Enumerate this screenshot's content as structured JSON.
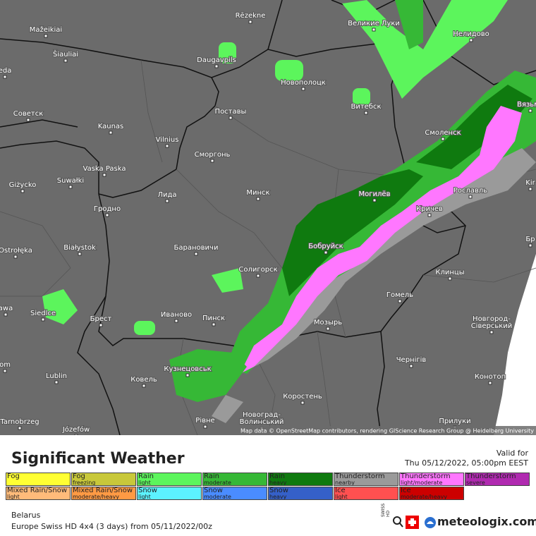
{
  "map": {
    "cities": [
      "Rēzekne",
      "Великие Луки",
      "Mažeikiai",
      "Нелидово",
      "Šiauliai",
      "Daugavpils",
      "Новополоцк",
      "Витебск",
      "Вязьма",
      "Советск",
      "Kaunas",
      "Поставы",
      "Смоленск",
      "Vilnius",
      "Сморгонь",
      "Vaska Paska",
      "Giżycko",
      "Suwałki",
      "Лида",
      "Минск",
      "Могилёв",
      "Рославль",
      "Kir",
      "Гродно",
      "Кричев",
      "Ostrołęka",
      "Białystok",
      "Бобруйск",
      "Барановичи",
      "Бр",
      "Солигорск",
      "Клинцы",
      "Гомель",
      "awa",
      "Siedlce",
      "Брест",
      "Иваново",
      "Пинск",
      "Мозырь",
      "Новгород-",
      "Сіверський",
      "om",
      "Чернігів",
      "Кузнецовськ",
      "Ковель",
      "Lublin",
      "Конотоп",
      "Коростень",
      "Новоград-",
      "Волинський",
      "Рівне",
      "Прилуки",
      "Tarnobrzeg",
      "Józefów",
      "eda"
    ],
    "attribution": "Map data © OpenStreetMap contributors, rendering GIScience Research Group @ Heidelberg University"
  },
  "header": {
    "title": "Significant Weather",
    "valid_label": "Valid for",
    "valid_time": "Thu 05/12/2022, 05:00pm EEST"
  },
  "legend": [
    {
      "name": "Fog",
      "color": "#ffff33"
    },
    {
      "name": "Fog",
      "detail": "freezing",
      "color": "#c8c83a"
    },
    {
      "name": "Rain",
      "detail": "light",
      "color": "#5cf55c"
    },
    {
      "name": "Rain",
      "detail": "moderate",
      "color": "#36b836"
    },
    {
      "name": "Rain",
      "detail": "heavy",
      "color": "#0f7a0f"
    },
    {
      "name": "Thunderstorm",
      "detail": "nearby",
      "color": "#9a9a9a"
    },
    {
      "name": "Thunderstorm",
      "detail": "light/moderate",
      "color": "#ff77ff"
    },
    {
      "name": "Thunderstorm",
      "detail": "severe",
      "color": "#b02ab0"
    },
    {
      "name": "Mixed Rain/Snow",
      "detail": "light",
      "color": "#ffbb7a"
    },
    {
      "name": "Mixed Rain/Snow",
      "detail": "moderate/heavy",
      "color": "#ff9a44"
    },
    {
      "name": "Snow",
      "detail": "light",
      "color": "#5cf2ff"
    },
    {
      "name": "Snow",
      "detail": "moderate",
      "color": "#4a8cff"
    },
    {
      "name": "Snow",
      "detail": "heavy",
      "color": "#3560c8"
    },
    {
      "name": "Ice",
      "detail": "light",
      "color": "#ff5050"
    },
    {
      "name": "Ice",
      "detail": "moderate/heavy",
      "color": "#cc0000"
    }
  ],
  "footer": {
    "region": "Belarus",
    "model": "Europe Swiss HD 4x4 (3 days) from 05/11/2022/00z",
    "brand": "meteologix.com",
    "badge": "SWISS HD"
  }
}
